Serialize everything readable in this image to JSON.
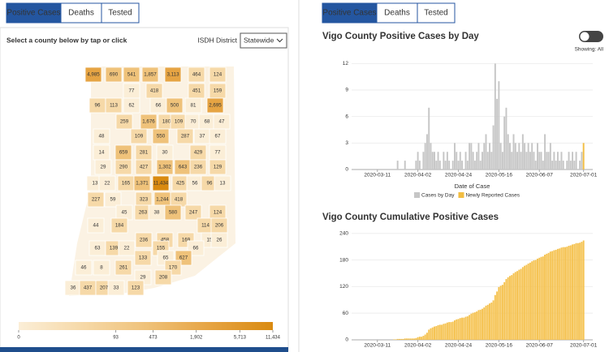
{
  "left_panel": {
    "tabs": [
      "Positive Cases",
      "Deaths",
      "Tested"
    ],
    "instruction": "Select a county below by tap or click",
    "district_label": "ISDH District",
    "district_select": "Statewide",
    "map": {
      "counties": [
        {
          "value": 4985,
          "label": "4,985"
        },
        690,
        541,
        {
          "value": 1857,
          "label": "1,857"
        },
        {
          "value": 3113,
          "label": "3,113"
        },
        464,
        124,
        77,
        418,
        451,
        159,
        96,
        113,
        62,
        66,
        500,
        81,
        {
          "value": 2695,
          "label": "2,695"
        },
        259,
        {
          "value": 1676,
          "label": "1,676"
        },
        180,
        109,
        70,
        68,
        47,
        48,
        109,
        550,
        287,
        37,
        67,
        14,
        659,
        281,
        30,
        429,
        77,
        29,
        290,
        427,
        {
          "value": 1302,
          "label": "1,302"
        },
        643,
        236,
        129,
        13,
        22,
        165,
        {
          "value": 1371,
          "label": "1,371"
        },
        {
          "value": 11434,
          "label": "11,434"
        },
        425,
        56,
        96,
        13,
        227,
        59,
        323,
        {
          "value": 1244,
          "label": "1,244"
        },
        418,
        45,
        263,
        38,
        580,
        247,
        124,
        44,
        184,
        114,
        206,
        236,
        458,
        169,
        15,
        26,
        63,
        139,
        22,
        155,
        66,
        133,
        65,
        627,
        46,
        8,
        261,
        170,
        29,
        208,
        36,
        437,
        207,
        33,
        123
      ],
      "legend_ticks": [
        0,
        93,
        473,
        {
          "value": 1902,
          "label": "1,902"
        },
        {
          "value": 5713,
          "label": "5,713"
        },
        {
          "value": 11434,
          "label": "11,434"
        }
      ],
      "colors": [
        "#fbeed7",
        "#f6d9a8",
        "#efc27a",
        "#e6a443",
        "#d98a10"
      ]
    }
  },
  "right_panel": {
    "tabs": [
      "Positive Cases",
      "Deaths",
      "Tested"
    ],
    "toggle_label": "Showing: All"
  },
  "chart_data": [
    {
      "type": "bar",
      "title": "Vigo County Positive Cases by Day",
      "xlabel": "Date of Case",
      "x": [
        "2020-03-20",
        "2020-03-21",
        "2020-03-22",
        "2020-03-23",
        "2020-03-24",
        "2020-03-25",
        "2020-03-26",
        "2020-03-27",
        "2020-03-28",
        "2020-03-29",
        "2020-03-30",
        "2020-03-31",
        "2020-04-01",
        "2020-04-02",
        "2020-04-03",
        "2020-04-04",
        "2020-04-05",
        "2020-04-06",
        "2020-04-07",
        "2020-04-08",
        "2020-04-09",
        "2020-04-10",
        "2020-04-11",
        "2020-04-12",
        "2020-04-13",
        "2020-04-14",
        "2020-04-15",
        "2020-04-16",
        "2020-04-17",
        "2020-04-18",
        "2020-04-19",
        "2020-04-20",
        "2020-04-21",
        "2020-04-22",
        "2020-04-23",
        "2020-04-24",
        "2020-04-25",
        "2020-04-26",
        "2020-04-27",
        "2020-04-28",
        "2020-04-29",
        "2020-04-30",
        "2020-05-01",
        "2020-05-02",
        "2020-05-03",
        "2020-05-04",
        "2020-05-05",
        "2020-05-06",
        "2020-05-07",
        "2020-05-08",
        "2020-05-09",
        "2020-05-10",
        "2020-05-11",
        "2020-05-12",
        "2020-05-13",
        "2020-05-14",
        "2020-05-15",
        "2020-05-16",
        "2020-05-17",
        "2020-05-18",
        "2020-05-19",
        "2020-05-20",
        "2020-05-21",
        "2020-05-22",
        "2020-05-23",
        "2020-05-24",
        "2020-05-25",
        "2020-05-26",
        "2020-05-27",
        "2020-05-28",
        "2020-05-29",
        "2020-05-30",
        "2020-05-31",
        "2020-06-01",
        "2020-06-02",
        "2020-06-03",
        "2020-06-04",
        "2020-06-05",
        "2020-06-06",
        "2020-06-07",
        "2020-06-08",
        "2020-06-09",
        "2020-06-10",
        "2020-06-11",
        "2020-06-12",
        "2020-06-13",
        "2020-06-14",
        "2020-06-15",
        "2020-06-16",
        "2020-06-17",
        "2020-06-18",
        "2020-06-19",
        "2020-06-20",
        "2020-06-21",
        "2020-06-22",
        "2020-06-23",
        "2020-06-24",
        "2020-06-25",
        "2020-06-26",
        "2020-06-27",
        "2020-06-28",
        "2020-06-29",
        "2020-06-30",
        "2020-07-01"
      ],
      "series": [
        {
          "name": "Cases by Day",
          "color": "#c6c6c6",
          "values": [
            0,
            0,
            1,
            0,
            0,
            0,
            1,
            0,
            0,
            0,
            0,
            0,
            1,
            2,
            1,
            0,
            2,
            3,
            4,
            7,
            3,
            2,
            2,
            1,
            2,
            1,
            0,
            2,
            1,
            2,
            1,
            0,
            1,
            3,
            2,
            1,
            2,
            1,
            0,
            2,
            1,
            3,
            3,
            2,
            1,
            2,
            3,
            1,
            2,
            3,
            4,
            2,
            3,
            2,
            5,
            12,
            8,
            10,
            3,
            2,
            6,
            7,
            4,
            3,
            2,
            4,
            3,
            2,
            3,
            2,
            4,
            3,
            2,
            3,
            2,
            3,
            2,
            1,
            3,
            2,
            2,
            1,
            4,
            2,
            2,
            3,
            1,
            2,
            1,
            2,
            1,
            2,
            1,
            0,
            1,
            2,
            1,
            2,
            1,
            2,
            0,
            1,
            2,
            0
          ]
        },
        {
          "name": "Newly Reported Cases",
          "color": "#f2bd42",
          "x": [
            "2020-07-01"
          ],
          "values": [
            3
          ]
        }
      ],
      "xlim": [
        "2020-02-26",
        "2020-07-06"
      ],
      "xticks": [
        "2020-03-11",
        "2020-04-02",
        "2020-04-24",
        "2020-05-16",
        "2020-06-07",
        "2020-07-01"
      ],
      "ylim": [
        0,
        12.4
      ],
      "yticks": [
        0,
        3,
        6,
        9,
        12
      ]
    },
    {
      "type": "bar",
      "title": "Vigo County Cumulative Positive Cases",
      "color": "#f5c24f",
      "x": [
        "2020-03-20",
        "2020-03-21",
        "2020-03-22",
        "2020-03-23",
        "2020-03-24",
        "2020-03-25",
        "2020-03-26",
        "2020-03-27",
        "2020-03-28",
        "2020-03-29",
        "2020-03-30",
        "2020-03-31",
        "2020-04-01",
        "2020-04-02",
        "2020-04-03",
        "2020-04-04",
        "2020-04-05",
        "2020-04-06",
        "2020-04-07",
        "2020-04-08",
        "2020-04-09",
        "2020-04-10",
        "2020-04-11",
        "2020-04-12",
        "2020-04-13",
        "2020-04-14",
        "2020-04-15",
        "2020-04-16",
        "2020-04-17",
        "2020-04-18",
        "2020-04-19",
        "2020-04-20",
        "2020-04-21",
        "2020-04-22",
        "2020-04-23",
        "2020-04-24",
        "2020-04-25",
        "2020-04-26",
        "2020-04-27",
        "2020-04-28",
        "2020-04-29",
        "2020-04-30",
        "2020-05-01",
        "2020-05-02",
        "2020-05-03",
        "2020-05-04",
        "2020-05-05",
        "2020-05-06",
        "2020-05-07",
        "2020-05-08",
        "2020-05-09",
        "2020-05-10",
        "2020-05-11",
        "2020-05-12",
        "2020-05-13",
        "2020-05-14",
        "2020-05-15",
        "2020-05-16",
        "2020-05-17",
        "2020-05-18",
        "2020-05-19",
        "2020-05-20",
        "2020-05-21",
        "2020-05-22",
        "2020-05-23",
        "2020-05-24",
        "2020-05-25",
        "2020-05-26",
        "2020-05-27",
        "2020-05-28",
        "2020-05-29",
        "2020-05-30",
        "2020-05-31",
        "2020-06-01",
        "2020-06-02",
        "2020-06-03",
        "2020-06-04",
        "2020-06-05",
        "2020-06-06",
        "2020-06-07",
        "2020-06-08",
        "2020-06-09",
        "2020-06-10",
        "2020-06-11",
        "2020-06-12",
        "2020-06-13",
        "2020-06-14",
        "2020-06-15",
        "2020-06-16",
        "2020-06-17",
        "2020-06-18",
        "2020-06-19",
        "2020-06-20",
        "2020-06-21",
        "2020-06-22",
        "2020-06-23",
        "2020-06-24",
        "2020-06-25",
        "2020-06-26",
        "2020-06-27",
        "2020-06-28",
        "2020-06-29",
        "2020-06-30",
        "2020-07-01"
      ],
      "values": [
        1,
        1,
        2,
        2,
        2,
        2,
        3,
        3,
        3,
        3,
        3,
        3,
        4,
        6,
        7,
        7,
        9,
        12,
        16,
        23,
        26,
        28,
        30,
        31,
        33,
        34,
        34,
        36,
        37,
        39,
        40,
        40,
        41,
        44,
        46,
        47,
        49,
        50,
        50,
        52,
        53,
        56,
        59,
        61,
        62,
        64,
        67,
        68,
        70,
        73,
        77,
        79,
        82,
        84,
        89,
        101,
        109,
        119,
        122,
        124,
        130,
        137,
        141,
        144,
        146,
        150,
        153,
        155,
        158,
        160,
        164,
        167,
        169,
        172,
        174,
        177,
        179,
        180,
        183,
        185,
        187,
        188,
        192,
        194,
        196,
        199,
        200,
        202,
        203,
        205,
        206,
        208,
        209,
        209,
        210,
        212,
        213,
        215,
        216,
        218,
        218,
        219,
        221,
        224
      ],
      "xlim": [
        "2020-02-26",
        "2020-07-06"
      ],
      "xticks": [
        "2020-03-11",
        "2020-04-02",
        "2020-04-24",
        "2020-05-16",
        "2020-06-07",
        "2020-07-01"
      ],
      "ylim": [
        0,
        245
      ],
      "yticks": [
        0,
        60,
        120,
        180,
        240
      ]
    }
  ]
}
